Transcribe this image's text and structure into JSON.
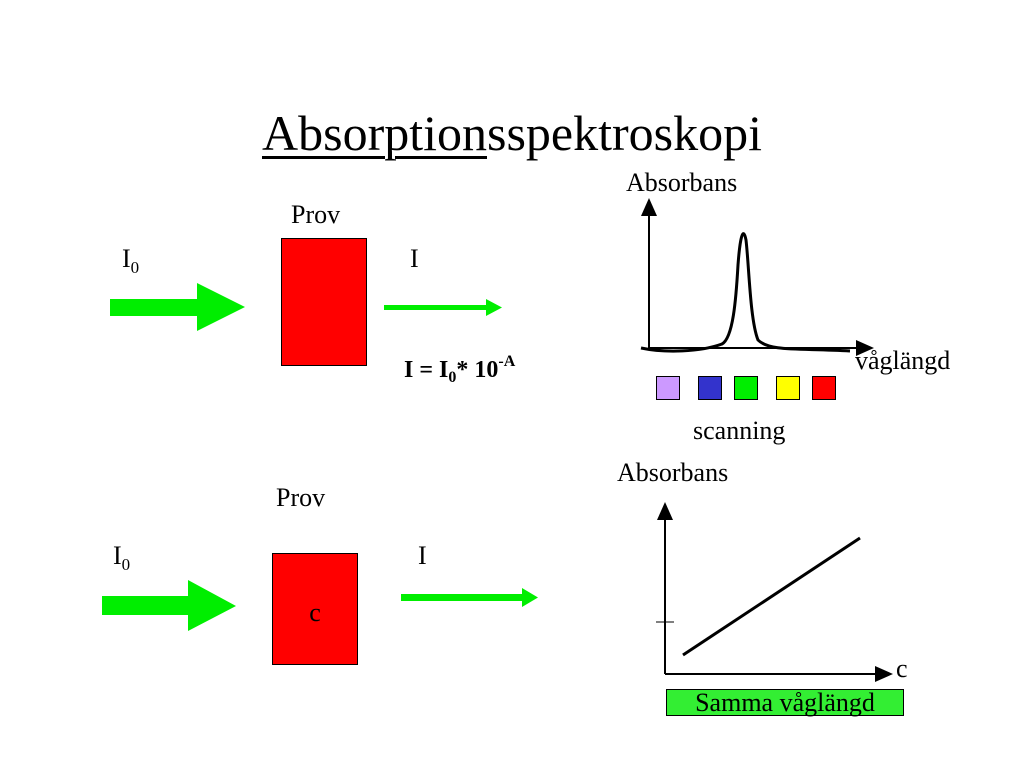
{
  "title": {
    "underlined": "Absorption",
    "rest": "sspektroskopi"
  },
  "top": {
    "sample_label": "Prov",
    "incident_label": "I",
    "incident_sub": "0",
    "transmitted_label": "I",
    "formula": {
      "lhs": "I = I",
      "sub": "0",
      "mid": "* 10",
      "sup": "-A"
    },
    "graph": {
      "y_label": "Absorbans",
      "x_label": "våglängd",
      "scanning_label": "scanning",
      "filter_colors": [
        "#cc99ff",
        "#3333cc",
        "#00ee00",
        "#ffff00",
        "#ff0000"
      ]
    }
  },
  "bottom": {
    "sample_label": "Prov",
    "sample_inner": "c",
    "incident_label": "I",
    "incident_sub": "0",
    "transmitted_label": "I",
    "graph": {
      "y_label": "Absorbans",
      "x_label": "c",
      "footer": "Samma våglängd"
    }
  },
  "colors": {
    "arrow": "#00ee00",
    "sample": "#ff0000",
    "highlight": "#33ee33"
  }
}
